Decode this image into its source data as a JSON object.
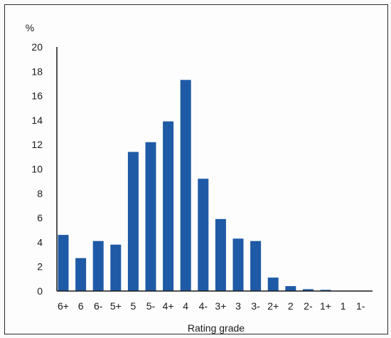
{
  "chart_data": {
    "type": "bar",
    "categories": [
      "6+",
      "6",
      "6-",
      "5+",
      "5",
      "5-",
      "4+",
      "4",
      "4-",
      "3+",
      "3",
      "3-",
      "2+",
      "2",
      "2-",
      "1+",
      "1",
      "1-"
    ],
    "values": [
      4.6,
      2.7,
      4.1,
      3.8,
      11.4,
      12.2,
      13.9,
      17.3,
      9.2,
      5.9,
      4.3,
      4.1,
      1.1,
      0.4,
      0.15,
      0.1,
      0.0,
      0.0
    ],
    "title": "",
    "xlabel": "Rating grade",
    "ylabel": "%",
    "ylim": [
      0,
      20
    ],
    "yticks": [
      0,
      2,
      4,
      6,
      8,
      10,
      12,
      14,
      16,
      18,
      20
    ],
    "grid": false,
    "bar_color": "#1f5aa6"
  }
}
